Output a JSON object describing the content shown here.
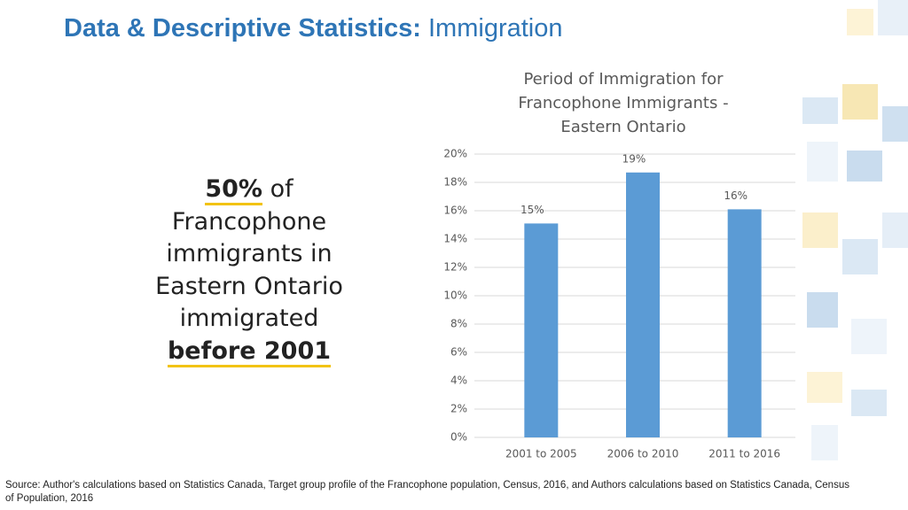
{
  "header": {
    "title_bold": "Data & Descriptive Statistics:",
    "title_rest": "Immigration"
  },
  "callout": {
    "highlight": "50%",
    "after": "of",
    "body": "Francophone immigrants in Eastern Ontario immigrated",
    "emphasis": "before 2001"
  },
  "source": "Source: Author's calculations based on Statistics Canada, Target group profile of the Francophone population, Census, 2016, and Authors calculations based on Statistics Canada, Census of Population, 2016",
  "chart_data": {
    "type": "bar",
    "title": "Period of Immigration for Francophone Immigrants - Eastern Ontario",
    "categories": [
      "2001 to 2005",
      "2006 to 2010",
      "2011 to 2016"
    ],
    "values": [
      15.1,
      18.7,
      16.1
    ],
    "value_labels": [
      "15%",
      "19%",
      "16%"
    ],
    "color": "#5b9bd5",
    "ylim": [
      0,
      20
    ],
    "yticks": [
      {
        "value": 0,
        "label": "0%"
      },
      {
        "value": 2,
        "label": "2%"
      },
      {
        "value": 4,
        "label": "4%"
      },
      {
        "value": 6,
        "label": "6%"
      },
      {
        "value": 8,
        "label": "8%"
      },
      {
        "value": 10,
        "label": "10%"
      },
      {
        "value": 12,
        "label": "12%"
      },
      {
        "value": 14,
        "label": "14%"
      },
      {
        "value": 16,
        "label": "16%"
      },
      {
        "value": 18,
        "label": "18%"
      },
      {
        "value": 20,
        "label": "20%"
      }
    ],
    "grid": true
  }
}
